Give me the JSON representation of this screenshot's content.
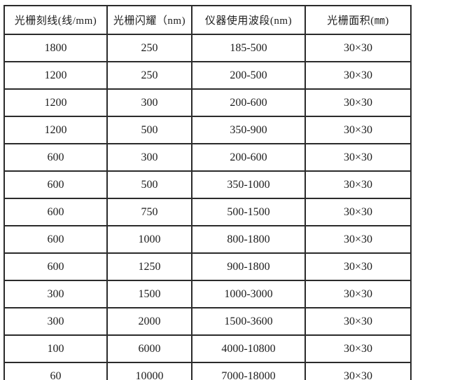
{
  "page": {
    "background": "#ffffff"
  },
  "table": {
    "border_color": "#2b2b2b",
    "text_color": "#1c1c1c",
    "headers": [
      "光栅刻线(线/mm)",
      "光栅闪耀（nm)",
      "仪器使用波段(nm)",
      "光栅面积(㎜)"
    ],
    "rows": [
      [
        "1800",
        "250",
        "185-500",
        "30×30"
      ],
      [
        "1200",
        "250",
        "200-500",
        "30×30"
      ],
      [
        "1200",
        "300",
        "200-600",
        "30×30"
      ],
      [
        "1200",
        "500",
        "350-900",
        "30×30"
      ],
      [
        "600",
        "300",
        "200-600",
        "30×30"
      ],
      [
        "600",
        "500",
        "350-1000",
        "30×30"
      ],
      [
        "600",
        "750",
        "500-1500",
        "30×30"
      ],
      [
        "600",
        "1000",
        "800-1800",
        "30×30"
      ],
      [
        "600",
        "1250",
        "900-1800",
        "30×30"
      ],
      [
        "300",
        "1500",
        "1000-3000",
        "30×30"
      ],
      [
        "300",
        "2000",
        "1500-3600",
        "30×30"
      ],
      [
        "100",
        "6000",
        "4000-10800",
        "30×30"
      ],
      [
        "60",
        "10000",
        "7000-18000",
        "30×30"
      ]
    ]
  }
}
